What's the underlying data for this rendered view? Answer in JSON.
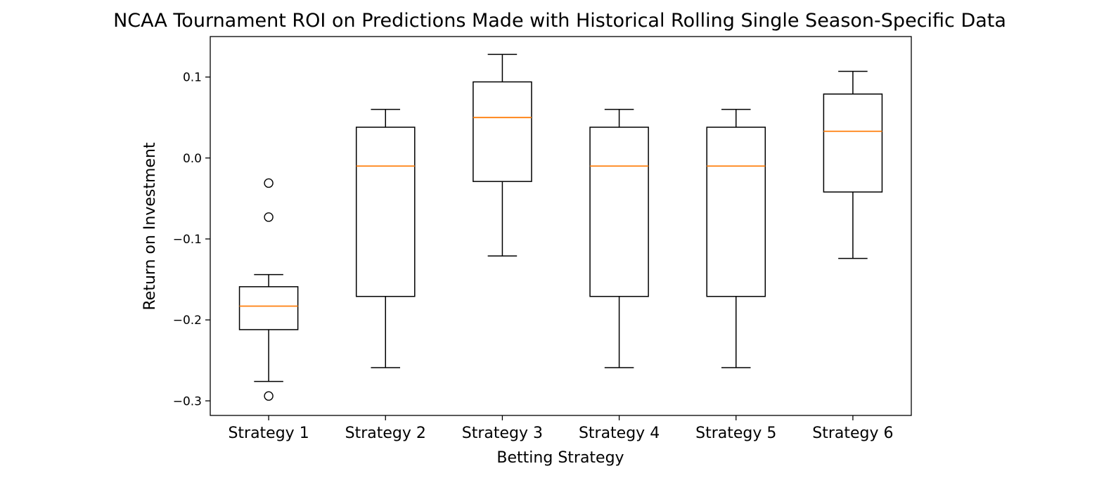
{
  "chart_data": {
    "type": "box",
    "title": "NCAA Tournament ROI on Predictions Made with Historical Rolling Single Season-Specific Data",
    "xlabel": "Betting Strategy",
    "ylabel": "Return on Investment",
    "ylim": [
      -0.318,
      0.15
    ],
    "yticks": [
      -0.3,
      -0.2,
      -0.1,
      0.0,
      0.1
    ],
    "ytick_labels": [
      "−0.3",
      "−0.2",
      "−0.1",
      "0.0",
      "0.1"
    ],
    "grid": false,
    "categories": [
      "Strategy 1",
      "Strategy 2",
      "Strategy 3",
      "Strategy 4",
      "Strategy 5",
      "Strategy 6"
    ],
    "boxes": [
      {
        "whisker_low": -0.276,
        "q1": -0.212,
        "median": -0.183,
        "q3": -0.159,
        "whisker_high": -0.144,
        "outliers": [
          -0.031,
          -0.073,
          -0.294
        ]
      },
      {
        "whisker_low": -0.259,
        "q1": -0.171,
        "median": -0.01,
        "q3": 0.038,
        "whisker_high": 0.06,
        "outliers": []
      },
      {
        "whisker_low": -0.121,
        "q1": -0.029,
        "median": 0.05,
        "q3": 0.094,
        "whisker_high": 0.128,
        "outliers": []
      },
      {
        "whisker_low": -0.259,
        "q1": -0.171,
        "median": -0.01,
        "q3": 0.038,
        "whisker_high": 0.06,
        "outliers": []
      },
      {
        "whisker_low": -0.259,
        "q1": -0.171,
        "median": -0.01,
        "q3": 0.038,
        "whisker_high": 0.06,
        "outliers": []
      },
      {
        "whisker_low": -0.124,
        "q1": -0.042,
        "median": 0.033,
        "q3": 0.079,
        "whisker_high": 0.107,
        "outliers": []
      }
    ],
    "colors": {
      "box": "#000000",
      "median": "#ff7f0e",
      "outlier_edge": "#000000"
    }
  }
}
